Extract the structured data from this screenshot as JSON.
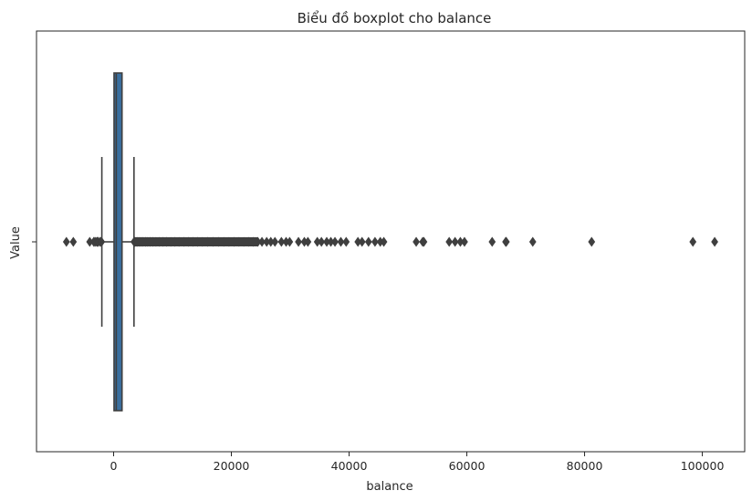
{
  "chart_data": {
    "type": "boxplot",
    "orientation": "horizontal",
    "title": "Biểu đồ boxplot cho balance",
    "xlabel": "balance",
    "ylabel": "Value",
    "y_tick_label": "",
    "xlim": [
      -13100,
      107200
    ],
    "x_ticks": [
      {
        "value": 0,
        "label": "0"
      },
      {
        "value": 20000,
        "label": "20000"
      },
      {
        "value": 40000,
        "label": "40000"
      },
      {
        "value": 60000,
        "label": "60000"
      },
      {
        "value": 80000,
        "label": "80000"
      },
      {
        "value": 100000,
        "label": "100000"
      }
    ],
    "grid": false,
    "box": {
      "q1": 72,
      "median": 448,
      "q3": 1428,
      "whisker_low": -2000,
      "whisker_high": 3460,
      "color": "#3a6f9f",
      "edge_color": "#3f3f3f"
    },
    "outliers": [
      -8019,
      -6847,
      -4057,
      -3372,
      -3313,
      -3058,
      -2827,
      -2712,
      -2604,
      -2282,
      -2122,
      -2093,
      -2049,
      3470,
      3600,
      3800,
      4000,
      4300,
      4600,
      5000,
      5400,
      5800,
      6200,
      6700,
      7200,
      7800,
      8400,
      9000,
      9700,
      10400,
      11100,
      11900,
      12700,
      13500,
      14300,
      15100,
      16000,
      16900,
      17800,
      18700,
      19600,
      20500,
      21300,
      22100,
      22900,
      23700,
      24500,
      25200,
      26000,
      26700,
      27400,
      28500,
      29300,
      29900,
      31400,
      32400,
      33000,
      34600,
      35300,
      36200,
      36900,
      37600,
      38600,
      39500,
      41500,
      42200,
      43300,
      44400,
      45300,
      45900,
      51400,
      52500,
      52700,
      57000,
      58000,
      58900,
      59600,
      64300,
      66600,
      66700,
      71200,
      81200,
      98400,
      102100
    ]
  }
}
